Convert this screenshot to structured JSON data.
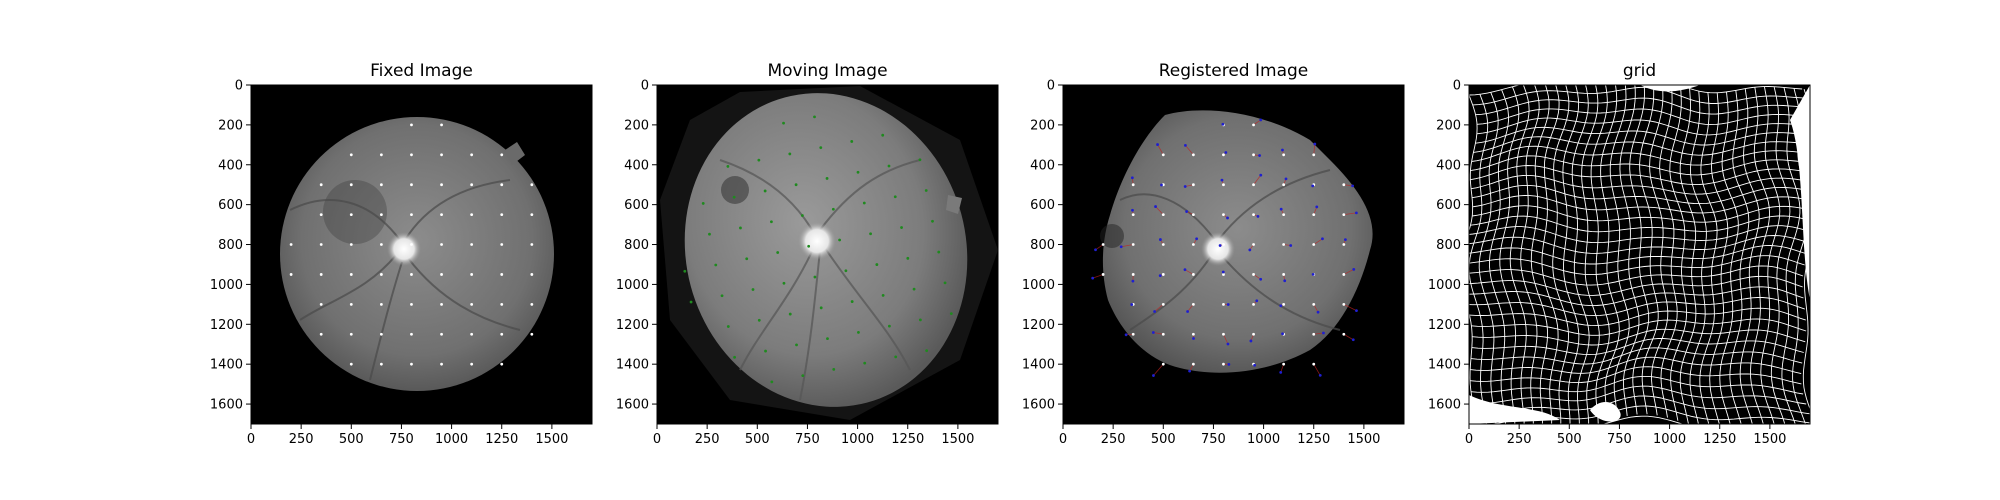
{
  "panels": [
    {
      "title": "Fixed Image",
      "x_ticks": [
        "0",
        "250",
        "500",
        "750",
        "1000",
        "1250",
        "1500"
      ],
      "y_ticks": [
        "0",
        "200",
        "400",
        "600",
        "800",
        "1000",
        "1200",
        "1400",
        "1600"
      ]
    },
    {
      "title": "Moving Image",
      "x_ticks": [
        "0",
        "250",
        "500",
        "750",
        "1000",
        "1250",
        "1500"
      ],
      "y_ticks": [
        "0",
        "200",
        "400",
        "600",
        "800",
        "1000",
        "1200",
        "1400",
        "1600"
      ]
    },
    {
      "title": "Registered Image",
      "x_ticks": [
        "0",
        "250",
        "500",
        "750",
        "1000",
        "1250",
        "1500"
      ],
      "y_ticks": [
        "0",
        "200",
        "400",
        "600",
        "800",
        "1000",
        "1200",
        "1400",
        "1600"
      ]
    },
    {
      "title": "grid",
      "x_ticks": [
        "0",
        "250",
        "500",
        "750",
        "1000",
        "1250",
        "1500"
      ],
      "y_ticks": [
        "0",
        "200",
        "400",
        "600",
        "800",
        "1000",
        "1200",
        "1400",
        "1600"
      ]
    }
  ],
  "axis_range": {
    "x": [
      0,
      1700
    ],
    "y": [
      0,
      1700
    ]
  },
  "colors": {
    "background": "#000000",
    "fundus_fixed": "#7a7a7a",
    "fundus_moving": "#8a8a8a",
    "optic_disc": "#f2f2f2",
    "fixed_points": "#ffffff",
    "moving_points": "#1f8a1f",
    "registered_points": "#1f1fd0",
    "displacement_lines": "#c02020",
    "grid_lines": "#ffffff"
  }
}
